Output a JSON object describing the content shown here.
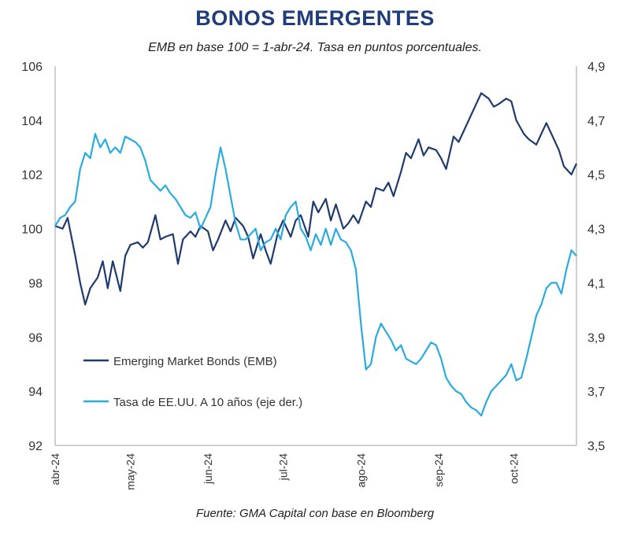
{
  "chart_data": {
    "type": "line",
    "title": "BONOS EMERGENTES",
    "subtitle": "EMB en base 100 = 1-abr-24. Tasa en puntos porcentuales.",
    "source": "Fuente: GMA Capital con base en Bloomberg",
    "x_tick_labels": [
      "abr-24",
      "may-24",
      "jun-24",
      "jul-24",
      "ago-24",
      "sep-24",
      "oct-24"
    ],
    "x_tick_days": [
      0,
      30,
      61,
      91,
      122,
      153,
      183
    ],
    "x_range_days": [
      0,
      208
    ],
    "y_left": {
      "ylim": [
        92,
        106
      ],
      "ticks": [
        "92",
        "94",
        "96",
        "98",
        "100",
        "102",
        "104",
        "106"
      ]
    },
    "y_right": {
      "ylim": [
        3.5,
        4.9
      ],
      "ticks": [
        "3,5",
        "3,7",
        "3,9",
        "4,1",
        "4,3",
        "4,5",
        "4,7",
        "4,9"
      ]
    },
    "colors": {
      "emb": "#1f3a6e",
      "rate": "#29abe2",
      "axis": "#bfbfbf",
      "text": "#333333"
    },
    "legend_placement": "lower-left",
    "grid": false,
    "series": [
      {
        "name": "Emerging Market Bonds (EMB)",
        "axis": "left",
        "days": [
          0,
          3,
          5,
          8,
          10,
          12,
          14,
          17,
          19,
          21,
          23,
          26,
          28,
          30,
          33,
          35,
          37,
          40,
          42,
          44,
          47,
          49,
          51,
          54,
          56,
          58,
          61,
          63,
          65,
          68,
          70,
          72,
          75,
          77,
          79,
          82,
          84,
          86,
          89,
          91,
          94,
          96,
          98,
          101,
          103,
          105,
          108,
          110,
          112,
          115,
          117,
          119,
          121,
          124,
          126,
          128,
          131,
          133,
          135,
          138,
          140,
          142,
          145,
          147,
          149,
          152,
          154,
          156,
          159,
          161,
          163,
          166,
          168,
          170,
          173,
          175,
          177,
          180,
          182,
          184,
          187,
          189,
          192,
          194,
          196,
          199,
          201,
          203,
          206,
          208
        ],
        "values": [
          100.1,
          100.0,
          100.4,
          99.0,
          98.0,
          97.2,
          97.8,
          98.2,
          98.8,
          97.8,
          98.8,
          97.7,
          99.0,
          99.4,
          99.5,
          99.3,
          99.5,
          100.5,
          99.6,
          99.7,
          99.8,
          98.7,
          99.6,
          99.9,
          99.7,
          100.1,
          99.9,
          99.2,
          99.6,
          100.3,
          99.9,
          100.4,
          100.1,
          99.7,
          98.9,
          99.8,
          99.2,
          98.7,
          99.9,
          100.3,
          99.7,
          100.3,
          100.5,
          99.7,
          101.0,
          100.6,
          101.1,
          100.3,
          100.9,
          100.0,
          100.2,
          100.5,
          100.2,
          101.0,
          100.8,
          101.5,
          101.4,
          101.7,
          101.2,
          102.1,
          102.8,
          102.6,
          103.3,
          102.7,
          103.0,
          102.9,
          102.6,
          102.2,
          103.4,
          103.2,
          103.6,
          104.2,
          104.6,
          105.0,
          104.8,
          104.5,
          104.6,
          104.8,
          104.7,
          104.0,
          103.5,
          103.3,
          103.1,
          103.5,
          103.9,
          103.3,
          102.9,
          102.3,
          102.0,
          102.4
        ]
      },
      {
        "name": "Tasa de EE.UU. A 10 años (eje der.)",
        "axis": "right",
        "days": [
          0,
          2,
          4,
          6,
          8,
          10,
          12,
          14,
          16,
          18,
          20,
          22,
          24,
          26,
          28,
          30,
          32,
          34,
          36,
          38,
          40,
          42,
          44,
          46,
          48,
          50,
          52,
          54,
          56,
          58,
          60,
          62,
          64,
          66,
          68,
          70,
          72,
          74,
          76,
          78,
          80,
          82,
          84,
          86,
          88,
          90,
          92,
          94,
          96,
          98,
          100,
          102,
          104,
          106,
          108,
          110,
          112,
          114,
          116,
          118,
          120,
          122,
          124,
          126,
          128,
          130,
          132,
          134,
          136,
          138,
          140,
          142,
          144,
          146,
          148,
          150,
          152,
          154,
          156,
          158,
          160,
          162,
          164,
          166,
          168,
          170,
          172,
          174,
          176,
          178,
          180,
          182,
          184,
          186,
          188,
          190,
          192,
          194,
          196,
          198,
          200,
          202,
          204,
          206,
          208
        ],
        "values": [
          4.31,
          4.34,
          4.35,
          4.38,
          4.4,
          4.52,
          4.58,
          4.56,
          4.65,
          4.6,
          4.63,
          4.58,
          4.6,
          4.58,
          4.64,
          4.63,
          4.62,
          4.6,
          4.55,
          4.48,
          4.46,
          4.44,
          4.46,
          4.43,
          4.41,
          4.38,
          4.35,
          4.34,
          4.36,
          4.3,
          4.34,
          4.38,
          4.5,
          4.6,
          4.52,
          4.42,
          4.32,
          4.26,
          4.26,
          4.28,
          4.3,
          4.22,
          4.25,
          4.26,
          4.3,
          4.26,
          4.35,
          4.38,
          4.4,
          4.3,
          4.27,
          4.22,
          4.28,
          4.24,
          4.3,
          4.24,
          4.3,
          4.26,
          4.25,
          4.22,
          4.15,
          3.95,
          3.78,
          3.8,
          3.9,
          3.95,
          3.92,
          3.89,
          3.85,
          3.87,
          3.82,
          3.81,
          3.8,
          3.82,
          3.85,
          3.88,
          3.87,
          3.82,
          3.75,
          3.72,
          3.7,
          3.69,
          3.66,
          3.64,
          3.63,
          3.61,
          3.66,
          3.7,
          3.72,
          3.74,
          3.76,
          3.8,
          3.74,
          3.75,
          3.82,
          3.9,
          3.98,
          4.02,
          4.08,
          4.1,
          4.1,
          4.06,
          4.15,
          4.22,
          4.2
        ]
      }
    ]
  }
}
